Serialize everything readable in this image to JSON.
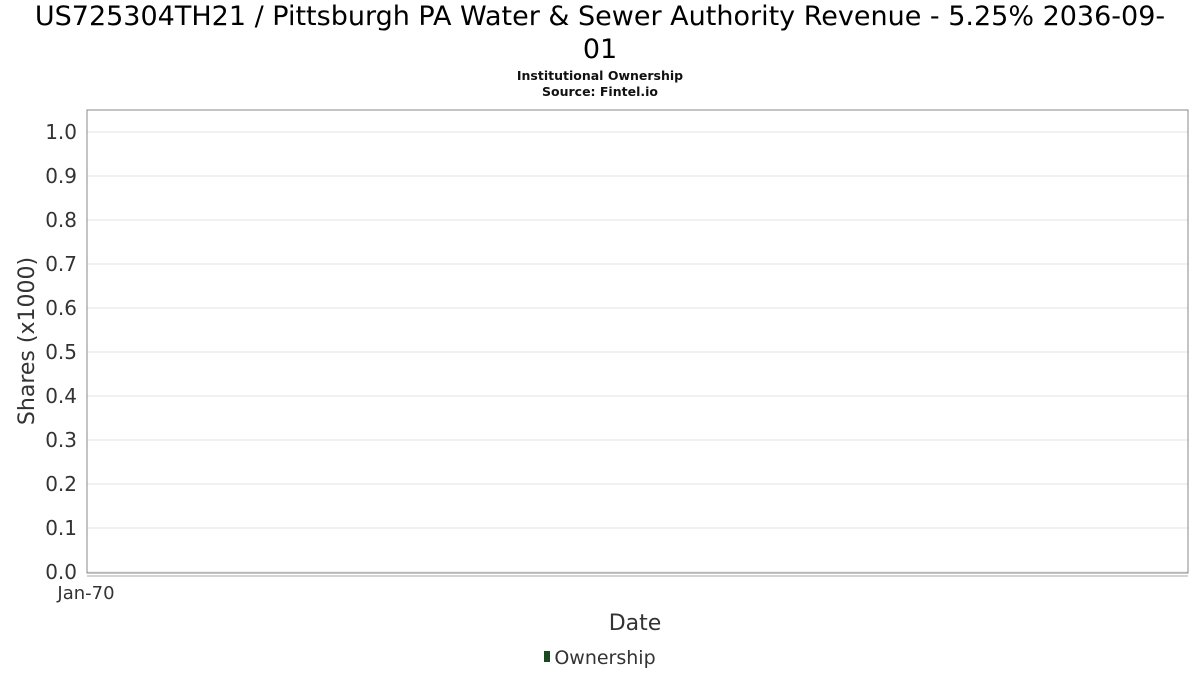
{
  "chart_data": {
    "type": "area",
    "title": "US725304TH21 / Pittsburgh PA Water & Sewer Authority Revenue - 5.25% 2036-09-01",
    "title_lines": [
      "US725304TH21 / Pittsburgh PA Water & Sewer Authority Revenue - 5.25% 2036-09-",
      "01"
    ],
    "subtitle_lines": [
      "Institutional Ownership",
      "Source: Fintel.io"
    ],
    "xlabel": "Date",
    "ylabel": "Shares (x1000)",
    "x_ticks": [
      "Jan-70"
    ],
    "y_ticks": [
      0.0,
      0.1,
      0.2,
      0.3,
      0.4,
      0.5,
      0.6,
      0.7,
      0.8,
      0.9,
      1.0
    ],
    "ylim": [
      0,
      1.05
    ],
    "grid": true,
    "legend_position": "bottom-center",
    "series": [
      {
        "name": "Ownership",
        "color": "#1b4a22",
        "x": [],
        "values": []
      }
    ]
  }
}
